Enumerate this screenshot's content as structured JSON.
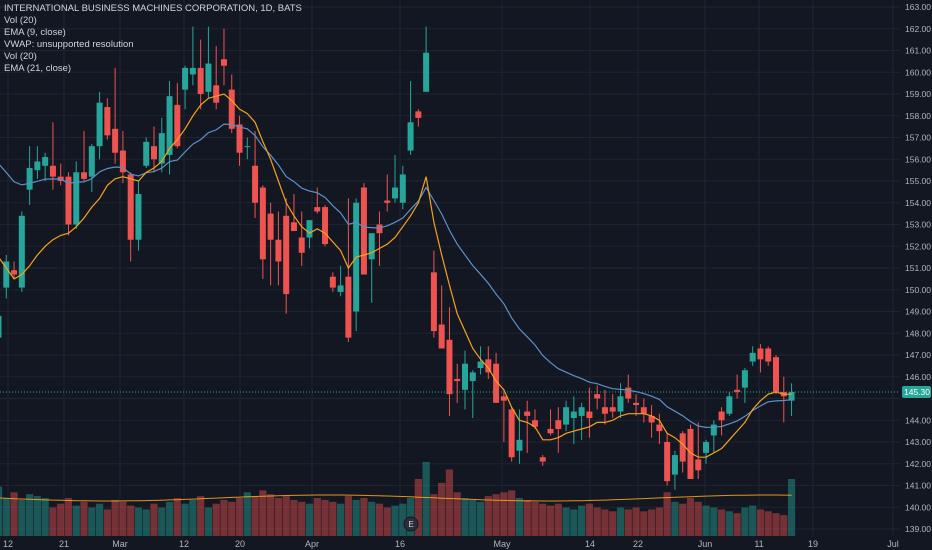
{
  "legend": {
    "title": "INTERNATIONAL BUSINESS MACHINES CORPORATION, 1D, BATS",
    "line1": "Vol (20)",
    "line2": "EMA (9, close)",
    "line3": "VWAP: unsupported resolution",
    "line4": "Vol (20)",
    "line5": "EMA (21, close)"
  },
  "event_marker": "E",
  "colors": {
    "background": "#131722",
    "up": "#26a69a",
    "down": "#ef5350",
    "ema9": "#f7a21b",
    "ema21": "#5b8fc9",
    "price_line": "#26a69a",
    "grid": "#1f2433"
  },
  "chart_data": {
    "type": "candlestick",
    "symbol": "INTERNATIONAL BUSINESS MACHINES CORPORATION",
    "interval": "1D",
    "exchange": "BATS",
    "y_axis_side": "right",
    "ylim": [
      138.6,
      163.2
    ],
    "y_ticks": [
      "139.00",
      "140.00",
      "141.00",
      "142.00",
      "143.00",
      "144.00",
      "145.00",
      "146.00",
      "147.00",
      "148.00",
      "149.00",
      "150.00",
      "151.00",
      "152.00",
      "153.00",
      "154.00",
      "155.00",
      "156.00",
      "157.00",
      "158.00",
      "159.00",
      "160.00",
      "161.00",
      "162.00",
      "163.00"
    ],
    "x_ticks": [
      "12",
      "21",
      "Mar",
      "12",
      "20",
      "Apr",
      "16",
      "May",
      "14",
      "22",
      "Jun",
      "11",
      "19",
      "Jul"
    ],
    "last_price": "145.30",
    "grid": true,
    "candles": [
      {
        "open": 147.8,
        "high": 150.6,
        "low": 144.6,
        "close": 148.8
      },
      {
        "open": 150.1,
        "high": 151.6,
        "low": 149.6,
        "close": 151.3
      },
      {
        "open": 150.9,
        "high": 151.3,
        "low": 150.5,
        "close": 150.7
      },
      {
        "open": 150.1,
        "high": 153.6,
        "low": 149.9,
        "close": 153.4
      },
      {
        "open": 154.6,
        "high": 156.6,
        "low": 153.9,
        "close": 155.6
      },
      {
        "open": 155.5,
        "high": 156.6,
        "low": 155.1,
        "close": 155.9
      },
      {
        "open": 155.7,
        "high": 156.3,
        "low": 155.0,
        "close": 156.1
      },
      {
        "open": 155.7,
        "high": 157.7,
        "low": 154.6,
        "close": 155.2
      },
      {
        "open": 155.2,
        "high": 155.8,
        "low": 154.8,
        "close": 155.0
      },
      {
        "open": 155.2,
        "high": 155.4,
        "low": 152.5,
        "close": 153.0
      },
      {
        "open": 153.0,
        "high": 155.9,
        "low": 152.8,
        "close": 155.4
      },
      {
        "open": 155.4,
        "high": 157.3,
        "low": 155.0,
        "close": 155.1
      },
      {
        "open": 155.2,
        "high": 156.7,
        "low": 154.5,
        "close": 156.6
      },
      {
        "open": 156.6,
        "high": 159.1,
        "low": 156.0,
        "close": 158.6
      },
      {
        "open": 158.4,
        "high": 158.8,
        "low": 156.9,
        "close": 157.1
      },
      {
        "open": 157.4,
        "high": 160.2,
        "low": 155.8,
        "close": 156.3
      },
      {
        "open": 156.4,
        "high": 157.3,
        "low": 154.9,
        "close": 155.4
      },
      {
        "open": 155.3,
        "high": 155.4,
        "low": 151.3,
        "close": 152.3
      },
      {
        "open": 152.3,
        "high": 155.0,
        "low": 151.8,
        "close": 154.4
      },
      {
        "open": 155.7,
        "high": 157.0,
        "low": 155.6,
        "close": 156.8
      },
      {
        "open": 156.6,
        "high": 157.5,
        "low": 155.4,
        "close": 156.0
      },
      {
        "open": 155.8,
        "high": 157.9,
        "low": 155.4,
        "close": 157.2
      },
      {
        "open": 156.2,
        "high": 159.6,
        "low": 155.3,
        "close": 158.9
      },
      {
        "open": 158.5,
        "high": 159.5,
        "low": 156.5,
        "close": 156.6
      },
      {
        "open": 159.2,
        "high": 160.3,
        "low": 158.3,
        "close": 160.2
      },
      {
        "open": 159.9,
        "high": 162.1,
        "low": 159.4,
        "close": 160.2
      },
      {
        "open": 160.2,
        "high": 161.5,
        "low": 158.3,
        "close": 159.0
      },
      {
        "open": 159.1,
        "high": 162.1,
        "low": 158.8,
        "close": 160.4
      },
      {
        "open": 159.4,
        "high": 161.2,
        "low": 158.3,
        "close": 158.6
      },
      {
        "open": 160.6,
        "high": 162.0,
        "low": 159.4,
        "close": 160.3
      },
      {
        "open": 159.2,
        "high": 159.9,
        "low": 157.2,
        "close": 157.4
      },
      {
        "open": 157.6,
        "high": 158.0,
        "low": 155.7,
        "close": 156.3
      },
      {
        "open": 156.6,
        "high": 157.0,
        "low": 156.0,
        "close": 156.6
      },
      {
        "open": 155.7,
        "high": 157.3,
        "low": 153.3,
        "close": 154.0
      },
      {
        "open": 154.7,
        "high": 154.8,
        "low": 150.5,
        "close": 151.4
      },
      {
        "open": 153.5,
        "high": 154.0,
        "low": 150.2,
        "close": 152.3
      },
      {
        "open": 152.3,
        "high": 153.6,
        "low": 150.2,
        "close": 151.3
      },
      {
        "open": 153.4,
        "high": 154.2,
        "low": 148.9,
        "close": 149.8
      },
      {
        "open": 153.1,
        "high": 154.4,
        "low": 152.7,
        "close": 152.7
      },
      {
        "open": 152.4,
        "high": 153.6,
        "low": 151.1,
        "close": 151.7
      },
      {
        "open": 152.4,
        "high": 153.2,
        "low": 151.9,
        "close": 153.2
      },
      {
        "open": 153.8,
        "high": 154.7,
        "low": 153.5,
        "close": 153.6
      },
      {
        "open": 153.8,
        "high": 153.9,
        "low": 152.0,
        "close": 152.1
      },
      {
        "open": 150.6,
        "high": 150.8,
        "low": 149.9,
        "close": 150.1
      },
      {
        "open": 149.9,
        "high": 151.1,
        "low": 149.7,
        "close": 150.2
      },
      {
        "open": 150.6,
        "high": 154.2,
        "low": 147.6,
        "close": 147.8
      },
      {
        "open": 149.0,
        "high": 154.2,
        "low": 148.1,
        "close": 154.0
      },
      {
        "open": 154.7,
        "high": 154.9,
        "low": 150.7,
        "close": 150.7
      },
      {
        "open": 151.4,
        "high": 152.6,
        "low": 149.4,
        "close": 152.6
      },
      {
        "open": 153.0,
        "high": 153.6,
        "low": 151.1,
        "close": 152.6
      },
      {
        "open": 154.1,
        "high": 155.3,
        "low": 153.6,
        "close": 154.0
      },
      {
        "open": 154.2,
        "high": 156.2,
        "low": 154.0,
        "close": 154.7
      },
      {
        "open": 154.0,
        "high": 155.7,
        "low": 153.7,
        "close": 155.3
      },
      {
        "open": 156.4,
        "high": 159.6,
        "low": 156.2,
        "close": 157.7
      },
      {
        "open": 158.2,
        "high": 158.3,
        "low": 157.5,
        "close": 157.9
      },
      {
        "open": 159.1,
        "high": 162.1,
        "low": 159.1,
        "close": 160.9
      },
      {
        "open": 150.8,
        "high": 151.8,
        "low": 147.8,
        "close": 148.1
      },
      {
        "open": 148.4,
        "high": 150.2,
        "low": 147.3,
        "close": 147.3
      },
      {
        "open": 147.7,
        "high": 149.2,
        "low": 144.2,
        "close": 145.2
      },
      {
        "open": 145.9,
        "high": 146.6,
        "low": 144.8,
        "close": 145.8
      },
      {
        "open": 145.4,
        "high": 147.2,
        "low": 144.5,
        "close": 146.6
      },
      {
        "open": 145.8,
        "high": 146.3,
        "low": 144.1,
        "close": 146.2
      },
      {
        "open": 146.4,
        "high": 147.4,
        "low": 146.1,
        "close": 146.7
      },
      {
        "open": 146.8,
        "high": 147.4,
        "low": 145.9,
        "close": 146.2
      },
      {
        "open": 146.6,
        "high": 147.1,
        "low": 144.8,
        "close": 144.8
      },
      {
        "open": 145.1,
        "high": 145.4,
        "low": 143.0,
        "close": 144.9
      },
      {
        "open": 144.5,
        "high": 144.6,
        "low": 142.1,
        "close": 142.3
      },
      {
        "open": 142.6,
        "high": 144.5,
        "low": 142.0,
        "close": 143.1
      },
      {
        "open": 144.4,
        "high": 144.9,
        "low": 142.5,
        "close": 144.2
      },
      {
        "open": 144.0,
        "high": 144.5,
        "low": 143.6,
        "close": 143.7
      },
      {
        "open": 142.3,
        "high": 142.4,
        "low": 141.9,
        "close": 142.1
      },
      {
        "open": 143.6,
        "high": 144.5,
        "low": 143.3,
        "close": 143.4
      },
      {
        "open": 144.0,
        "high": 144.6,
        "low": 142.5,
        "close": 143.6
      },
      {
        "open": 143.8,
        "high": 144.9,
        "low": 143.5,
        "close": 144.6
      },
      {
        "open": 144.1,
        "high": 145.1,
        "low": 142.9,
        "close": 144.4
      },
      {
        "open": 144.2,
        "high": 144.8,
        "low": 143.1,
        "close": 144.6
      },
      {
        "open": 144.4,
        "high": 145.5,
        "low": 143.2,
        "close": 144.1
      },
      {
        "open": 145.2,
        "high": 145.6,
        "low": 144.5,
        "close": 145.0
      },
      {
        "open": 144.6,
        "high": 145.4,
        "low": 143.8,
        "close": 144.3
      },
      {
        "open": 144.6,
        "high": 145.2,
        "low": 144.1,
        "close": 144.4
      },
      {
        "open": 144.4,
        "high": 145.7,
        "low": 144.1,
        "close": 145.1
      },
      {
        "open": 145.5,
        "high": 146.1,
        "low": 144.8,
        "close": 145.0
      },
      {
        "open": 144.8,
        "high": 145.2,
        "low": 144.2,
        "close": 144.7
      },
      {
        "open": 144.6,
        "high": 145.0,
        "low": 143.9,
        "close": 144.3
      },
      {
        "open": 144.2,
        "high": 144.7,
        "low": 143.2,
        "close": 143.9
      },
      {
        "open": 143.8,
        "high": 144.3,
        "low": 142.9,
        "close": 143.5
      },
      {
        "open": 143.0,
        "high": 143.4,
        "low": 141.0,
        "close": 141.2
      },
      {
        "open": 141.5,
        "high": 142.6,
        "low": 140.8,
        "close": 142.4
      },
      {
        "open": 143.4,
        "high": 143.5,
        "low": 141.6,
        "close": 142.1
      },
      {
        "open": 143.6,
        "high": 143.8,
        "low": 141.3,
        "close": 141.3
      },
      {
        "open": 142.2,
        "high": 143.9,
        "low": 141.3,
        "close": 141.7
      },
      {
        "open": 142.5,
        "high": 143.1,
        "low": 142.0,
        "close": 143.0
      },
      {
        "open": 143.3,
        "high": 144.0,
        "low": 142.5,
        "close": 143.8
      },
      {
        "open": 144.4,
        "high": 144.6,
        "low": 143.3,
        "close": 144.0
      },
      {
        "open": 144.3,
        "high": 145.3,
        "low": 144.2,
        "close": 145.1
      },
      {
        "open": 145.4,
        "high": 146.1,
        "low": 145.0,
        "close": 145.3
      },
      {
        "open": 145.5,
        "high": 146.4,
        "low": 144.8,
        "close": 146.3
      },
      {
        "open": 146.7,
        "high": 147.4,
        "low": 146.5,
        "close": 147.1
      },
      {
        "open": 147.3,
        "high": 147.5,
        "low": 146.2,
        "close": 146.8
      },
      {
        "open": 147.3,
        "high": 147.4,
        "low": 146.5,
        "close": 146.7
      },
      {
        "open": 146.9,
        "high": 147.0,
        "low": 145.2,
        "close": 145.3
      },
      {
        "open": 145.3,
        "high": 146.0,
        "low": 143.9,
        "close": 145.1
      },
      {
        "open": 144.9,
        "high": 145.7,
        "low": 144.2,
        "close": 145.3
      }
    ],
    "ema9": [
      151.5,
      151.0,
      150.5,
      150.7,
      151.1,
      151.6,
      152.0,
      152.3,
      152.5,
      152.6,
      152.9,
      153.3,
      153.8,
      154.2,
      154.8,
      155.1,
      155.2,
      155.1,
      155.0,
      155.4,
      155.6,
      155.9,
      156.5,
      156.9,
      157.4,
      158.0,
      158.5,
      158.8,
      158.9,
      159.0,
      158.7,
      158.3,
      158.1,
      157.7,
      156.8,
      156.0,
      155.0,
      154.0,
      153.4,
      152.9,
      152.6,
      152.8,
      152.6,
      152.2,
      151.8,
      151.0,
      151.5,
      151.6,
      151.7,
      151.9,
      152.1,
      152.4,
      152.9,
      153.4,
      154.0,
      155.2,
      153.1,
      151.6,
      150.2,
      148.9,
      148.1,
      147.3,
      146.8,
      146.4,
      145.8,
      145.4,
      144.6,
      144.0,
      143.9,
      143.7,
      143.1,
      143.1,
      143.2,
      143.4,
      143.5,
      143.6,
      143.7,
      143.9,
      143.9,
      144.0,
      144.2,
      144.3,
      144.3,
      144.3,
      144.2,
      144.0,
      143.4,
      143.2,
      142.9,
      142.5,
      142.3,
      142.3,
      142.5,
      142.7,
      143.1,
      143.5,
      143.9,
      144.5,
      144.9,
      145.2,
      145.3,
      145.2,
      145.2
    ]
  }
}
